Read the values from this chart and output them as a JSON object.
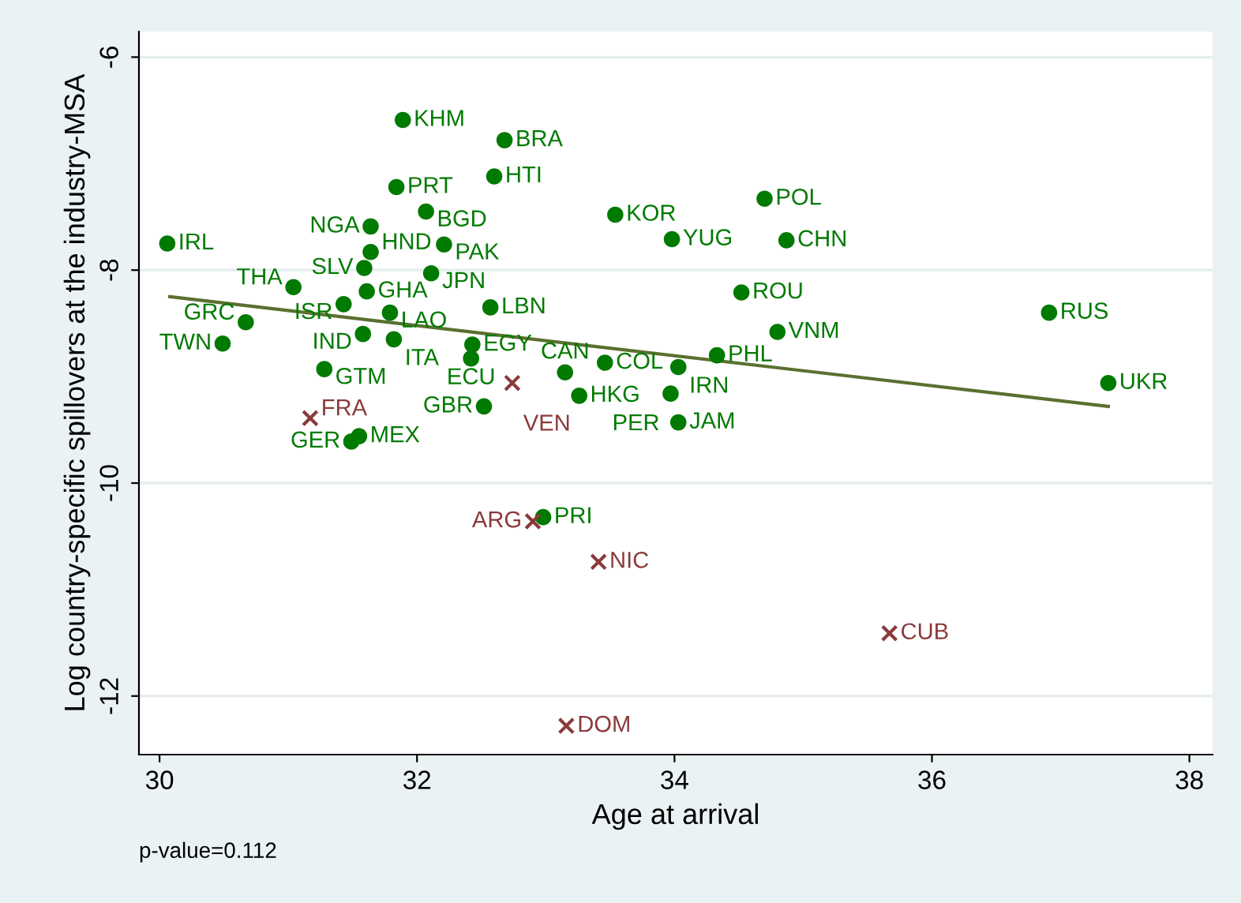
{
  "chart_data": {
    "type": "scatter",
    "xlabel": "Age at arrival",
    "ylabel": "Log country-specific spillovers at the industry-MSA",
    "xlim": [
      29.84,
      38.18
    ],
    "ylim": [
      -12.55,
      -5.76
    ],
    "xticks": [
      30,
      32,
      34,
      36,
      38
    ],
    "yticks": [
      {
        "value": -6,
        "label": "-6"
      },
      {
        "value": -8,
        "label": "-8"
      },
      {
        "value": -10,
        "label": "-10"
      },
      {
        "value": -12,
        "label": "-12"
      }
    ],
    "grid": "y",
    "annotations": [
      "p-value=0.112"
    ],
    "series": [
      {
        "marker": "circle",
        "color": "#007a00",
        "x": [
          31.89,
          32.68,
          32.6,
          31.84,
          32.07,
          33.54,
          31.64,
          30.06,
          32.21,
          31.64,
          31.59,
          32.11,
          31.04,
          31.61,
          31.43,
          32.57,
          31.79,
          30.67,
          31.58,
          31.82,
          30.49,
          32.43,
          32.42,
          31.28,
          33.46,
          33.15,
          33.26,
          32.52,
          31.55,
          31.49,
          32.98,
          34.7,
          33.98,
          34.87,
          34.52,
          36.91,
          34.8,
          34.33,
          34.03,
          37.37,
          33.97,
          34.03
        ],
        "values": [
          -6.59,
          -6.78,
          -7.12,
          -7.22,
          -7.45,
          -7.48,
          -7.59,
          -7.75,
          -7.76,
          -7.83,
          -7.98,
          -8.03,
          -8.16,
          -8.2,
          -8.32,
          -8.35,
          -8.4,
          -8.49,
          -8.6,
          -8.65,
          -8.69,
          -8.7,
          -8.83,
          -8.93,
          -8.87,
          -8.96,
          -9.18,
          -9.28,
          -9.56,
          -9.61,
          -10.32,
          -7.33,
          -7.71,
          -7.72,
          -8.21,
          -8.4,
          -8.58,
          -8.8,
          -8.91,
          -9.06,
          -9.16,
          -9.43
        ],
        "value_labels": [
          "KHM",
          "BRA",
          "HTI",
          "PRT",
          "BGD",
          "KOR",
          "NGA",
          "IRL",
          "PAK",
          "HND",
          "SLV",
          "JPN",
          "THA",
          "GHA",
          "ISR",
          "LBN",
          "LAO",
          "GRC",
          "IND",
          "ITA",
          "TWN",
          "EGY",
          "ECU",
          "GTM",
          "COL",
          "CAN",
          "HKG",
          "GBR",
          "MEX",
          "GER",
          "PRI",
          "POL",
          "YUG",
          "CHN",
          "ROU",
          "RUS",
          "VNM",
          "PHL",
          "IRN",
          "UKR",
          "PER",
          "JAM"
        ]
      },
      {
        "marker": "cross",
        "color": "#8b3a3a",
        "x": [
          32.74,
          31.17,
          32.9,
          33.41,
          33.16,
          35.67
        ],
        "values": [
          -9.06,
          -9.39,
          -10.36,
          -10.74,
          -12.28,
          -11.41
        ],
        "value_labels": [
          "VEN",
          "FRA",
          "ARG",
          "NIC",
          "DOM",
          "CUB"
        ]
      },
      {
        "type": "line",
        "marker": "none",
        "color": "#5a7030",
        "x": [
          30.08,
          37.37
        ],
        "values": [
          -8.25,
          -9.28
        ]
      }
    ]
  }
}
